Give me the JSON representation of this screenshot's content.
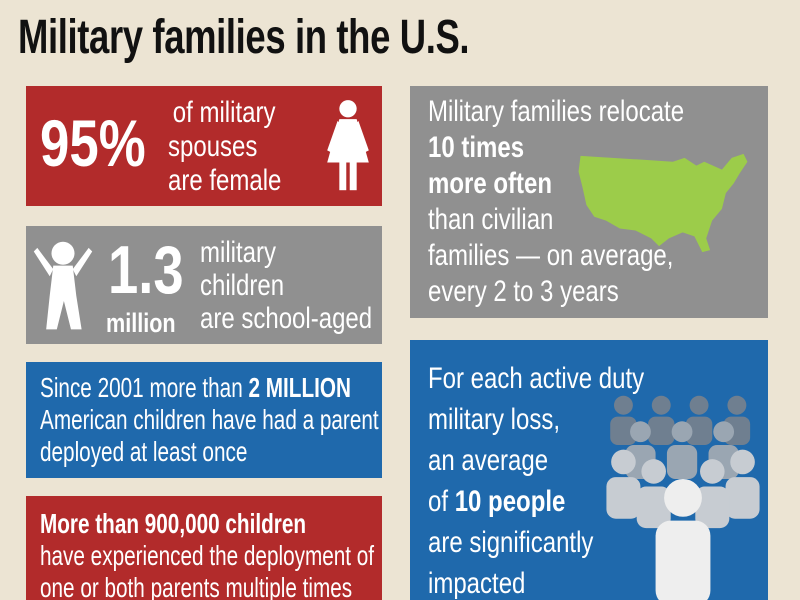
{
  "title": "Military families in the U.S.",
  "colors": {
    "background": "#ece4d3",
    "red": "#b22b2b",
    "gray": "#909090",
    "blue": "#1f69ac",
    "map": "#9ccc4a"
  },
  "spouses": {
    "stat": "95%",
    "line1": "of military",
    "line2": "spouses",
    "line3": "are female",
    "icon": "female-figure-icon"
  },
  "children": {
    "stat": "1.3",
    "unit": "million",
    "line1": "military",
    "line2": "children",
    "line3": "are school-aged",
    "icon": "child-figure-icon"
  },
  "relocate": {
    "line1": "Military families relocate",
    "line2": "10 times",
    "line3": "more often",
    "line4": "than civilian",
    "line5": "families — on average,",
    "line6": "every 2 to 3 years",
    "icon": "us-map-icon"
  },
  "deployed": {
    "line1_pre": "Since 2001 more than ",
    "line1_bold": "2 MILLION",
    "line2": "American children have had a parent",
    "line3": "deployed at least once"
  },
  "multiple": {
    "line1": "More than 900,000 children",
    "line2": "have experienced the deployment of",
    "line3": "one or both parents multiple times"
  },
  "loss": {
    "line1": "For each active duty",
    "line2": "military loss,",
    "line3": "an average",
    "line4_pre": "of ",
    "line4_bold": "10 people",
    "line5": "are significantly",
    "line6": "impacted",
    "icon": "people-group-icon"
  }
}
